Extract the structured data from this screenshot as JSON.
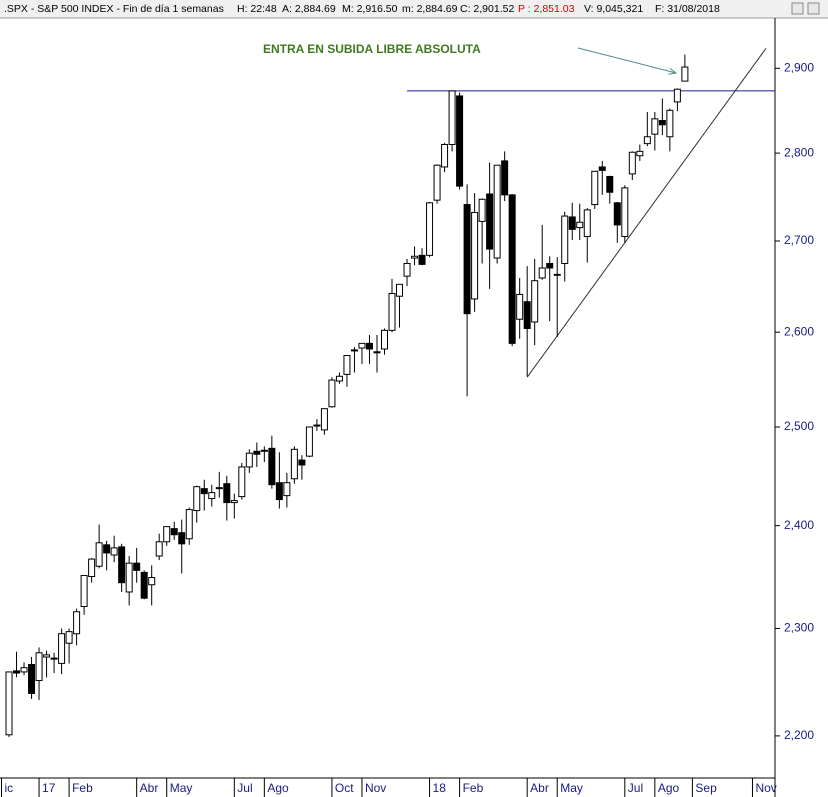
{
  "header": {
    "title": ".SPX - S&P 500 INDEX - Fin de día 1 semanas",
    "fields": [
      "H: 22:48",
      "A: 2,884.69",
      "M: 2,916.50",
      "m: 2,884.69",
      "C: 2,901.52",
      "P : 2,851.03",
      "V: 9,045,321",
      "F: 31/08/2018"
    ]
  },
  "chart_data": {
    "type": "candlestick",
    "log_scale": true,
    "annotation": "ENTRA EN SUBIDA LIBRE ABSOLUTA",
    "open": [
      2201,
      2260,
      2259,
      2266,
      2251,
      2273,
      2272,
      2267,
      2286,
      2295,
      2321,
      2350,
      2360,
      2381,
      2371,
      2379,
      2335,
      2363,
      2354,
      2342,
      2370,
      2384,
      2397,
      2393,
      2387,
      2415,
      2437,
      2427,
      2437,
      2442,
      2423,
      2429,
      2459,
      2475,
      2476,
      2478,
      2443,
      2430,
      2447,
      2466,
      2470,
      2502,
      2497,
      2521,
      2548,
      2555,
      2580,
      2583,
      2588,
      2579,
      2582,
      2602,
      2639,
      2661,
      2681,
      2684,
      2684,
      2746,
      2784,
      2810,
      2867,
      2741,
      2636,
      2722,
      2753,
      2681,
      2791,
      2752,
      2614,
      2633,
      2611,
      2659,
      2675,
      2663,
      2675,
      2727,
      2715,
      2705,
      2741,
      2784,
      2773,
      2743,
      2705,
      2776,
      2797,
      2811,
      2822,
      2838,
      2819,
      2860,
      2884.69
    ],
    "high": [
      2259,
      2278,
      2268,
      2273,
      2282,
      2279,
      2277,
      2300,
      2300,
      2319,
      2351,
      2368,
      2401,
      2385,
      2390,
      2382,
      2370,
      2378,
      2356,
      2361,
      2392,
      2399,
      2404,
      2406,
      2418,
      2440,
      2446,
      2441,
      2454,
      2450,
      2432,
      2463,
      2477,
      2484,
      2480,
      2491,
      2474,
      2453,
      2480,
      2471,
      2500,
      2508,
      2519,
      2552,
      2557,
      2575,
      2584,
      2588,
      2597,
      2597,
      2604,
      2658,
      2652,
      2680,
      2694,
      2692,
      2744,
      2787,
      2812,
      2873,
      2871,
      2764,
      2754,
      2748,
      2789,
      2786,
      2802,
      2753,
      2659,
      2672,
      2680,
      2718,
      2683,
      2682,
      2733,
      2743,
      2742,
      2737,
      2779,
      2791,
      2774,
      2744,
      2763,
      2802,
      2810,
      2848,
      2848,
      2864,
      2852,
      2876,
      2916.5
    ],
    "low": [
      2199,
      2254,
      2256,
      2234,
      2233,
      2254,
      2258,
      2257,
      2267,
      2284,
      2313,
      2344,
      2358,
      2356,
      2364,
      2335,
      2322,
      2344,
      2328,
      2322,
      2366,
      2380,
      2386,
      2353,
      2381,
      2403,
      2415,
      2419,
      2428,
      2405,
      2407,
      2426,
      2453,
      2459,
      2464,
      2437,
      2417,
      2418,
      2442,
      2446,
      2469,
      2496,
      2492,
      2520,
      2545,
      2542,
      2557,
      2566,
      2566,
      2557,
      2576,
      2600,
      2605,
      2650,
      2673,
      2673,
      2682,
      2742,
      2778,
      2802,
      2758,
      2532,
      2622,
      2675,
      2647,
      2675,
      2745,
      2585,
      2593,
      2553,
      2586,
      2657,
      2612,
      2595,
      2655,
      2701,
      2701,
      2676,
      2736,
      2752,
      2742,
      2698,
      2698,
      2769,
      2791,
      2808,
      2803,
      2821,
      2802,
      2849,
      2884.69
    ],
    "close": [
      2259,
      2258,
      2263,
      2239,
      2277,
      2275,
      2271,
      2295,
      2297,
      2316,
      2351,
      2367,
      2383,
      2373,
      2378,
      2344,
      2363,
      2356,
      2329,
      2349,
      2384,
      2399,
      2391,
      2382,
      2416,
      2439,
      2432,
      2433,
      2438,
      2423,
      2425,
      2459,
      2473,
      2472,
      2476,
      2441,
      2426,
      2443,
      2477,
      2461,
      2500,
      2502,
      2519,
      2549,
      2553,
      2575,
      2581,
      2588,
      2582,
      2579,
      2602,
      2642,
      2652,
      2675,
      2683,
      2674,
      2743,
      2786,
      2810,
      2873,
      2762,
      2620,
      2732,
      2747,
      2691,
      2786,
      2752,
      2588,
      2641,
      2604,
      2656,
      2670,
      2670,
      2663,
      2728,
      2713,
      2721,
      2735,
      2779,
      2780,
      2755,
      2718,
      2760,
      2801,
      2802,
      2819,
      2840,
      2833,
      2850,
      2875,
      2901.52
    ],
    "xlim": [
      -1.2,
      102
    ],
    "xticks": [
      {
        "value": -1,
        "label": "ic"
      },
      {
        "value": 4,
        "label": "17"
      },
      {
        "value": 8,
        "label": "Feb"
      },
      {
        "value": 17,
        "label": "Abr"
      },
      {
        "value": 21,
        "label": "May"
      },
      {
        "value": 30,
        "label": "Jul"
      },
      {
        "value": 34,
        "label": "Ago"
      },
      {
        "value": 43,
        "label": "Oct"
      },
      {
        "value": 47,
        "label": "Nov"
      },
      {
        "value": 56,
        "label": "18"
      },
      {
        "value": 60,
        "label": "Feb"
      },
      {
        "value": 69,
        "label": "Abr"
      },
      {
        "value": 73,
        "label": "May"
      },
      {
        "value": 82,
        "label": "Jul"
      },
      {
        "value": 86,
        "label": "Ago"
      },
      {
        "value": 91,
        "label": "Sep"
      },
      {
        "value": 99,
        "label": "Nov"
      }
    ],
    "ylim": [
      2162,
      2961
    ],
    "yticks": [
      {
        "value": 2200,
        "label": "2,200"
      },
      {
        "value": 2300,
        "label": "2,300"
      },
      {
        "value": 2400,
        "label": "2,400"
      },
      {
        "value": 2500,
        "label": "2,500"
      },
      {
        "value": 2600,
        "label": "2,600"
      },
      {
        "value": 2700,
        "label": "2,700"
      },
      {
        "value": 2800,
        "label": "2,800"
      },
      {
        "value": 2900,
        "label": "2,900"
      }
    ],
    "resistance": {
      "value": 2873,
      "start": 53,
      "color": "#1a1aa0"
    },
    "trendline": {
      "x": [
        69,
        100.8
      ],
      "y": [
        2552,
        2924
      ],
      "color": "#333333"
    },
    "up_color": "#ffffff",
    "down_color": "#000000"
  }
}
